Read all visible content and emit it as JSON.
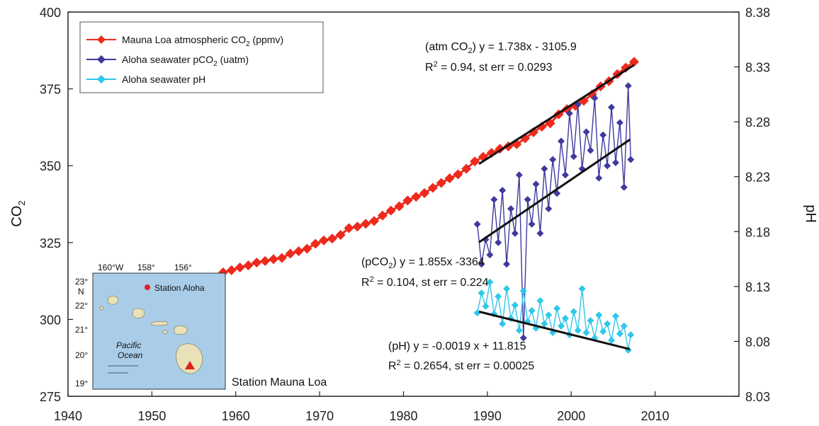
{
  "chart_data": {
    "type": "line",
    "x_axis": {
      "min": 1940,
      "max": 2020,
      "ticks": [
        1940,
        1950,
        1960,
        1970,
        1980,
        1990,
        2000,
        2010
      ]
    },
    "y_left": {
      "label_main": "CO",
      "label_sub": "2",
      "min": 275,
      "max": 400,
      "ticks": [
        275,
        300,
        325,
        350,
        375,
        400
      ]
    },
    "y_right": {
      "label": "pH",
      "min": 8.03,
      "max": 8.38,
      "ticks": [
        "8.03",
        "8.08",
        "8.13",
        "8.18",
        "8.23",
        "8.28",
        "8.33",
        "8.38"
      ]
    },
    "series": [
      {
        "name": "Mauna Loa atmospheric CO2 (ppmv)",
        "axis": "left",
        "color": "#ee2a1c",
        "marker": "diamond",
        "x": [
          1958.5,
          1959.5,
          1960.5,
          1961.5,
          1962.5,
          1963.5,
          1964.5,
          1965.5,
          1966.5,
          1967.5,
          1968.5,
          1969.5,
          1970.5,
          1971.5,
          1972.5,
          1973.5,
          1974.5,
          1975.5,
          1976.5,
          1977.5,
          1978.5,
          1979.5,
          1980.5,
          1981.5,
          1982.5,
          1983.5,
          1984.5,
          1985.5,
          1986.5,
          1987.5,
          1988.5,
          1989.5,
          1990.5,
          1991.5,
          1992.5,
          1993.5,
          1994.5,
          1995.5,
          1996.5,
          1997.5,
          1998.5,
          1999.5,
          2000.5,
          2001.5,
          2002.5,
          2003.5,
          2004.5,
          2005.5,
          2006.5,
          2007.5
        ],
        "y": [
          315.3,
          316.0,
          316.9,
          317.6,
          318.5,
          319.0,
          319.6,
          320.0,
          321.4,
          322.2,
          323.0,
          324.6,
          325.7,
          326.3,
          327.5,
          329.7,
          330.2,
          331.1,
          332.0,
          333.8,
          335.4,
          336.8,
          338.7,
          339.9,
          341.1,
          342.8,
          344.4,
          345.9,
          347.2,
          349.0,
          351.4,
          352.9,
          354.2,
          355.5,
          356.3,
          357.0,
          358.9,
          360.9,
          362.7,
          363.8,
          366.7,
          368.4,
          369.5,
          371.1,
          373.2,
          375.8,
          377.5,
          379.8,
          381.9,
          383.8
        ]
      },
      {
        "name": "Aloha seawater pCO2 (uatm)",
        "axis": "left",
        "color": "#3e3a9e",
        "marker": "diamond",
        "x": [
          1988.8,
          1989.3,
          1989.8,
          1990.3,
          1990.8,
          1991.3,
          1991.8,
          1992.3,
          1992.8,
          1993.3,
          1993.8,
          1994.3,
          1994.8,
          1995.3,
          1995.8,
          1996.3,
          1996.8,
          1997.3,
          1997.8,
          1998.3,
          1998.8,
          1999.3,
          1999.8,
          2000.3,
          2000.8,
          2001.3,
          2001.8,
          2002.3,
          2002.8,
          2003.3,
          2003.8,
          2004.3,
          2004.8,
          2005.3,
          2005.8,
          2006.3,
          2006.8,
          2007.1
        ],
        "y": [
          331,
          318,
          326,
          321,
          339,
          325,
          342,
          318,
          336,
          328,
          347,
          294,
          339,
          331,
          344,
          328,
          349,
          336,
          352,
          341,
          358,
          347,
          367,
          353,
          370,
          349,
          361,
          355,
          372,
          346,
          360,
          350,
          369,
          351,
          364,
          343,
          376,
          352
        ]
      },
      {
        "name": "Aloha seawater pH",
        "axis": "right",
        "color": "#2ec8ea",
        "marker": "diamond",
        "x": [
          1988.8,
          1989.3,
          1989.8,
          1990.3,
          1990.8,
          1991.3,
          1991.8,
          1992.3,
          1992.8,
          1993.3,
          1993.8,
          1994.3,
          1994.8,
          1995.3,
          1995.8,
          1996.3,
          1996.8,
          1997.3,
          1997.8,
          1998.3,
          1998.8,
          1999.3,
          1999.8,
          2000.3,
          2000.8,
          2001.3,
          2001.8,
          2002.3,
          2002.8,
          2003.3,
          2003.8,
          2004.3,
          2004.8,
          2005.3,
          2005.8,
          2006.3,
          2006.8,
          2007.1
        ],
        "y": [
          8.106,
          8.124,
          8.112,
          8.134,
          8.105,
          8.121,
          8.096,
          8.128,
          8.101,
          8.113,
          8.09,
          8.126,
          8.098,
          8.108,
          8.092,
          8.117,
          8.096,
          8.104,
          8.088,
          8.11,
          8.094,
          8.101,
          8.086,
          8.107,
          8.09,
          8.128,
          8.088,
          8.099,
          8.083,
          8.104,
          8.089,
          8.096,
          8.081,
          8.103,
          8.087,
          8.094,
          8.072,
          8.086
        ]
      }
    ],
    "trendlines": [
      {
        "axis": "left",
        "x": [
          1989,
          2007.5
        ],
        "y": [
          350.6,
          382.8
        ]
      },
      {
        "axis": "left",
        "x": [
          1989,
          2007
        ],
        "y": [
          325.1,
          358.5
        ]
      },
      {
        "axis": "right",
        "x": [
          1989,
          2007
        ],
        "y": [
          8.1071,
          8.0729
        ]
      }
    ],
    "legend": {
      "placement": "top-left",
      "items": [
        {
          "pre": "Mauna Loa atmospheric CO",
          "sub": "2",
          "post": " (ppmv)",
          "color": "#ee2a1c"
        },
        {
          "pre": "Aloha seawater  pCO",
          "sub": "2",
          "post": " (uatm)",
          "color": "#3e3a9e"
        },
        {
          "pre": "Aloha seawater  pH",
          "sub": "",
          "post": "",
          "color": "#2ec8ea"
        }
      ]
    },
    "annotations": {
      "atm_line1": {
        "pre": "(atm CO",
        "sub": "2",
        "post": ") y = 1.738x - 3105.9"
      },
      "atm_line2": {
        "pre": "R",
        "sup": "2",
        "post": " = 0.94, st err = 0.0293"
      },
      "pco2_line1": {
        "pre": "(pCO",
        "sub": "2",
        "post": ") y = 1.855x -3364"
      },
      "pco2_line2": {
        "pre": "R",
        "sup": "2",
        "post": " = 0.104, st err = 0.224"
      },
      "ph_line1": {
        "text": "(pH) y = -0.0019 x + 11.815"
      },
      "ph_line2": {
        "pre": "R",
        "sup": "2",
        "post": " = 0.2654, st err = 0.00025"
      }
    },
    "grid": false
  },
  "inset_map": {
    "lon_labels": [
      "160°W",
      "158°",
      "156°"
    ],
    "lat_labels": [
      "23°",
      "22°",
      "21°",
      "20°",
      "19°"
    ],
    "n_label": "N",
    "station_aloha": "Station Aloha",
    "station_mauna_loa": "Station Mauna Loa",
    "ocean_label_1": "Pacific",
    "ocean_label_2": "Ocean",
    "colors": {
      "ocean": "#a9cde9",
      "land": "#e9e2b8",
      "aloha_marker": "#e02020",
      "mauna_loa_marker": "#e02020"
    }
  }
}
